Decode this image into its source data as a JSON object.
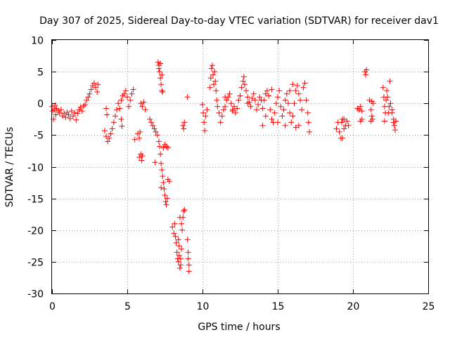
{
  "chart_data": {
    "type": "scatter",
    "title": "Day 307 of 2025, Sidereal Day-to-day VTEC variation (SDTVAR) for receiver dav1",
    "xlabel": "GPS time / hours",
    "ylabel": "SDTVAR / TECUs",
    "xlim": [
      0,
      25
    ],
    "ylim": [
      -30,
      10
    ],
    "xticks": [
      "0",
      "5",
      "10",
      "15",
      "20",
      "25"
    ],
    "yticks": [
      "10",
      "5",
      "0",
      "-5",
      "-10",
      "-15",
      "-20",
      "-25",
      "-30"
    ],
    "grid": true,
    "marker": "plus",
    "color": "#ff0000",
    "series": [
      {
        "name": "dav1",
        "points": [
          [
            0.0,
            -0.5
          ],
          [
            0.05,
            -1.2
          ],
          [
            0.1,
            -2.5
          ],
          [
            0.15,
            -1.0
          ],
          [
            0.2,
            -0.3
          ],
          [
            0.25,
            -1.8
          ],
          [
            0.3,
            -0.8
          ],
          [
            0.4,
            -1.2
          ],
          [
            0.5,
            -1.5
          ],
          [
            0.6,
            -1.0
          ],
          [
            0.7,
            -2.0
          ],
          [
            0.8,
            -1.6
          ],
          [
            0.9,
            -2.2
          ],
          [
            1.0,
            -1.4
          ],
          [
            1.1,
            -1.8
          ],
          [
            1.2,
            -2.4
          ],
          [
            1.3,
            -1.2
          ],
          [
            1.4,
            -2.0
          ],
          [
            1.5,
            -1.5
          ],
          [
            1.6,
            -2.6
          ],
          [
            1.7,
            -1.6
          ],
          [
            1.8,
            -1.0
          ],
          [
            1.9,
            -0.6
          ],
          [
            2.0,
            -1.2
          ],
          [
            2.1,
            -0.4
          ],
          [
            2.2,
            -0.2
          ],
          [
            2.3,
            0.5
          ],
          [
            2.4,
            1.0
          ],
          [
            2.5,
            1.5
          ],
          [
            2.6,
            2.2
          ],
          [
            2.7,
            2.8
          ],
          [
            2.8,
            3.2
          ],
          [
            2.9,
            2.5
          ],
          [
            3.0,
            1.8
          ],
          [
            3.05,
            3.0
          ],
          [
            3.5,
            -4.3
          ],
          [
            3.6,
            -5.2
          ],
          [
            3.7,
            -6.0
          ],
          [
            3.8,
            -5.5
          ],
          [
            3.9,
            -4.8
          ],
          [
            4.0,
            -4.0
          ],
          [
            4.1,
            -3.0
          ],
          [
            4.2,
            -2.0
          ],
          [
            4.3,
            -1.0
          ],
          [
            4.4,
            0.0
          ],
          [
            4.5,
            -0.8
          ],
          [
            4.6,
            0.5
          ],
          [
            4.7,
            1.2
          ],
          [
            4.8,
            1.5
          ],
          [
            4.9,
            2.0
          ],
          [
            5.0,
            1.0
          ],
          [
            5.1,
            -0.5
          ],
          [
            5.2,
            0.5
          ],
          [
            5.3,
            1.5
          ],
          [
            5.4,
            2.2
          ],
          [
            3.6,
            -0.8
          ],
          [
            3.65,
            -1.8
          ],
          [
            4.6,
            -2.5
          ],
          [
            4.65,
            -3.6
          ],
          [
            5.5,
            -5.7
          ],
          [
            5.7,
            -4.8
          ],
          [
            5.8,
            -5.5
          ],
          [
            5.85,
            -4.5
          ],
          [
            5.8,
            -8.5
          ],
          [
            5.9,
            -8.0
          ],
          [
            5.95,
            -9.0
          ],
          [
            6.0,
            -8.3
          ],
          [
            5.9,
            0.0
          ],
          [
            6.0,
            -0.5
          ],
          [
            6.1,
            0.2
          ],
          [
            6.2,
            -1.0
          ],
          [
            6.5,
            -2.5
          ],
          [
            6.6,
            -3.0
          ],
          [
            6.7,
            -3.5
          ],
          [
            6.8,
            -4.0
          ],
          [
            6.9,
            -4.5
          ],
          [
            6.85,
            -9.3
          ],
          [
            7.0,
            -5.0
          ],
          [
            7.1,
            -6.0
          ],
          [
            7.15,
            -6.8
          ],
          [
            7.2,
            -8.0
          ],
          [
            7.25,
            -9.5
          ],
          [
            7.3,
            -10.5
          ],
          [
            7.35,
            -11.5
          ],
          [
            7.4,
            -12.5
          ],
          [
            7.45,
            -13.5
          ],
          [
            7.5,
            -14.5
          ],
          [
            7.55,
            -15.5
          ],
          [
            7.6,
            -16.0
          ],
          [
            7.65,
            -15.0
          ],
          [
            7.7,
            -12.0
          ],
          [
            7.8,
            -12.3
          ],
          [
            7.25,
            -13.3
          ],
          [
            7.4,
            -7.0
          ],
          [
            7.5,
            -6.5
          ],
          [
            7.6,
            -6.8
          ],
          [
            7.7,
            -7.0
          ],
          [
            7.1,
            6.0
          ],
          [
            7.15,
            5.0
          ],
          [
            7.2,
            4.0
          ],
          [
            7.25,
            3.0
          ],
          [
            7.3,
            2.0
          ],
          [
            7.35,
            1.8
          ],
          [
            7.05,
            6.5
          ],
          [
            7.1,
            5.5
          ],
          [
            7.2,
            6.3
          ],
          [
            7.3,
            4.5
          ],
          [
            8.0,
            -19.5
          ],
          [
            8.1,
            -20.5
          ],
          [
            8.15,
            -19.0
          ],
          [
            8.2,
            -21.0
          ],
          [
            8.25,
            -22.0
          ],
          [
            8.3,
            -23.5
          ],
          [
            8.35,
            -24.5
          ],
          [
            8.4,
            -25.0
          ],
          [
            8.45,
            -24.0
          ],
          [
            8.5,
            -26.0
          ],
          [
            8.55,
            -25.5
          ],
          [
            8.6,
            -23.0
          ],
          [
            8.65,
            -20.0
          ],
          [
            8.7,
            -18.0
          ],
          [
            8.75,
            -17.0
          ],
          [
            8.8,
            -16.8
          ],
          [
            8.5,
            -18.0
          ],
          [
            8.6,
            -19.0
          ],
          [
            8.4,
            -21.5
          ],
          [
            8.45,
            -22.5
          ],
          [
            8.55,
            -24.5
          ],
          [
            9.0,
            -21.5
          ],
          [
            9.05,
            -23.5
          ],
          [
            9.1,
            -25.5
          ],
          [
            9.1,
            -26.5
          ],
          [
            9.05,
            -24.5
          ],
          [
            8.7,
            -3.5
          ],
          [
            8.75,
            -4.0
          ],
          [
            8.8,
            -3.0
          ],
          [
            9.0,
            1.0
          ],
          [
            10.0,
            -0.2
          ],
          [
            10.05,
            -1.5
          ],
          [
            10.1,
            -3.0
          ],
          [
            10.15,
            -4.3
          ],
          [
            10.2,
            -2.0
          ],
          [
            10.3,
            -1.0
          ],
          [
            10.5,
            2.5
          ],
          [
            10.55,
            4.0
          ],
          [
            10.6,
            5.5
          ],
          [
            10.65,
            6.0
          ],
          [
            10.7,
            4.5
          ],
          [
            10.75,
            3.0
          ],
          [
            10.8,
            5.0
          ],
          [
            10.85,
            3.5
          ],
          [
            10.9,
            2.0
          ],
          [
            10.95,
            0.5
          ],
          [
            11.0,
            -0.5
          ],
          [
            11.1,
            -1.5
          ],
          [
            11.2,
            -3.0
          ],
          [
            11.3,
            -2.0
          ],
          [
            11.4,
            -1.0
          ],
          [
            11.5,
            -0.5
          ],
          [
            11.6,
            0.5
          ],
          [
            11.7,
            1.0
          ],
          [
            11.8,
            1.5
          ],
          [
            11.9,
            0.0
          ],
          [
            12.0,
            -1.0
          ],
          [
            12.1,
            -0.5
          ],
          [
            12.2,
            -1.5
          ],
          [
            12.3,
            -0.8
          ],
          [
            12.4,
            0.5
          ],
          [
            12.5,
            1.2
          ],
          [
            12.6,
            2.5
          ],
          [
            12.7,
            3.5
          ],
          [
            12.75,
            4.2
          ],
          [
            12.8,
            3.0
          ],
          [
            12.9,
            2.0
          ],
          [
            13.0,
            1.0
          ],
          [
            13.1,
            0.2
          ],
          [
            13.2,
            -0.5
          ],
          [
            13.3,
            0.8
          ],
          [
            13.4,
            1.5
          ],
          [
            13.5,
            0.5
          ],
          [
            13.6,
            -1.0
          ],
          [
            13.7,
            -0.2
          ],
          [
            13.8,
            1.0
          ],
          [
            13.9,
            0.5
          ],
          [
            14.0,
            -0.8
          ],
          [
            14.1,
            0.5
          ],
          [
            14.2,
            1.5
          ],
          [
            14.3,
            2.0
          ],
          [
            14.4,
            1.2
          ],
          [
            14.5,
            -1.0
          ],
          [
            14.6,
            -2.5
          ],
          [
            14.7,
            -3.0
          ],
          [
            14.8,
            -1.5
          ],
          [
            14.9,
            0.0
          ],
          [
            15.0,
            1.0
          ],
          [
            15.1,
            2.0
          ],
          [
            15.2,
            -0.5
          ],
          [
            15.3,
            -2.0
          ],
          [
            15.4,
            -1.0
          ],
          [
            15.5,
            0.5
          ],
          [
            15.6,
            1.5
          ],
          [
            15.7,
            0.0
          ],
          [
            15.8,
            -1.5
          ],
          [
            15.9,
            -3.0
          ],
          [
            16.0,
            -2.0
          ],
          [
            16.1,
            0.0
          ],
          [
            16.2,
            2.0
          ],
          [
            16.3,
            2.8
          ],
          [
            16.4,
            1.5
          ],
          [
            16.5,
            0.5
          ],
          [
            16.6,
            -1.0
          ],
          [
            16.7,
            2.5
          ],
          [
            16.8,
            3.2
          ],
          [
            16.9,
            0.5
          ],
          [
            17.0,
            -1.5
          ],
          [
            17.05,
            -3.0
          ],
          [
            17.1,
            -4.5
          ],
          [
            14.0,
            -3.5
          ],
          [
            14.2,
            -2.0
          ],
          [
            15.0,
            -3.0
          ],
          [
            15.5,
            -3.5
          ],
          [
            16.2,
            -3.8
          ],
          [
            16.4,
            -3.5
          ],
          [
            13.0,
            0.0
          ],
          [
            12.0,
            -1.2
          ],
          [
            11.5,
            1.0
          ],
          [
            14.6,
            2.2
          ],
          [
            15.8,
            2.0
          ],
          [
            16.0,
            3.0
          ],
          [
            18.9,
            -4.0
          ],
          [
            19.0,
            -3.0
          ],
          [
            19.1,
            -4.5
          ],
          [
            19.2,
            -5.5
          ],
          [
            19.25,
            -3.0
          ],
          [
            19.3,
            -2.5
          ],
          [
            19.4,
            -4.0
          ],
          [
            19.5,
            -3.5
          ],
          [
            19.6,
            -2.8
          ],
          [
            19.7,
            -3.5
          ],
          [
            19.3,
            -5.5
          ],
          [
            19.4,
            -2.5
          ],
          [
            20.3,
            -0.8
          ],
          [
            20.4,
            -1.0
          ],
          [
            20.5,
            -0.5
          ],
          [
            20.6,
            -1.2
          ],
          [
            20.5,
            -2.8
          ],
          [
            20.6,
            -2.5
          ],
          [
            20.8,
            5.0
          ],
          [
            20.85,
            4.5
          ],
          [
            20.9,
            5.3
          ],
          [
            21.1,
            0.5
          ],
          [
            21.2,
            -1.0
          ],
          [
            21.25,
            -2.0
          ],
          [
            21.3,
            -2.5
          ],
          [
            21.35,
            0.0
          ],
          [
            21.2,
            -2.8
          ],
          [
            21.25,
            0.3
          ],
          [
            22.0,
            2.5
          ],
          [
            22.05,
            1.0
          ],
          [
            22.1,
            -0.5
          ],
          [
            22.15,
            -1.5
          ],
          [
            22.2,
            0.5
          ],
          [
            22.25,
            2.0
          ],
          [
            22.3,
            1.0
          ],
          [
            22.35,
            -1.5
          ],
          [
            22.4,
            -0.5
          ],
          [
            22.45,
            3.5
          ],
          [
            22.5,
            0.0
          ],
          [
            22.6,
            -1.0
          ],
          [
            22.7,
            -2.5
          ],
          [
            22.75,
            -3.5
          ],
          [
            22.8,
            -4.2
          ],
          [
            22.85,
            -2.8
          ],
          [
            22.1,
            -2.8
          ],
          [
            22.6,
            -1.5
          ],
          [
            22.7,
            -3.0
          ]
        ]
      }
    ]
  }
}
